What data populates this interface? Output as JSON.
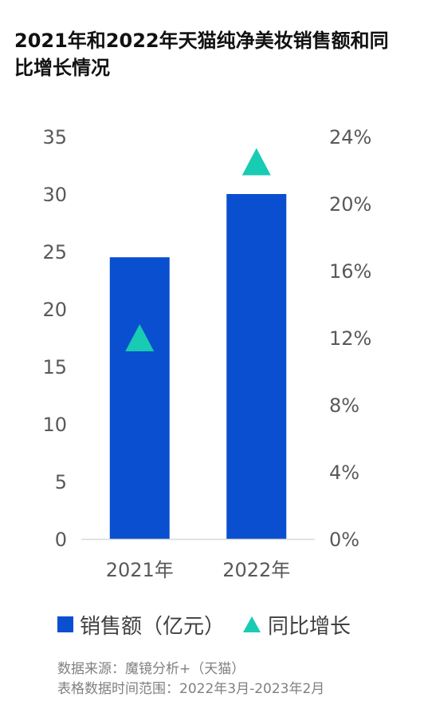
{
  "title": "2021年和2022年天猫纯净美妆销售额和同比增长情况",
  "colors": {
    "bar": "#0a4fd0",
    "triangle": "#18cbb3",
    "axis": "#d9d9d9"
  },
  "legend": {
    "bar_label": "销售额（亿元）",
    "triangle_label": "同比增长"
  },
  "source": {
    "line1": "数据来源：魔镜分析+（天猫）",
    "line2": "表格数据时间范围：2022年3月-2023年2月"
  },
  "chart_data": {
    "type": "bar",
    "categories": [
      "2021年",
      "2022年"
    ],
    "series": [
      {
        "name": "销售额（亿元）",
        "type": "bar",
        "axis": "left",
        "values": [
          24.5,
          30.0
        ]
      },
      {
        "name": "同比增长",
        "type": "scatter",
        "marker": "triangle",
        "axis": "right",
        "values": [
          12.0,
          22.5
        ]
      }
    ],
    "left_axis": {
      "ylim": [
        0,
        35
      ],
      "ticks": [
        "0",
        "5",
        "10",
        "15",
        "20",
        "25",
        "30",
        "35"
      ]
    },
    "right_axis": {
      "ylim": [
        0,
        24
      ],
      "ticks": [
        "0%",
        "4%",
        "8%",
        "12%",
        "16%",
        "20%",
        "24%"
      ]
    },
    "grid": false,
    "legend_position": "bottom"
  }
}
